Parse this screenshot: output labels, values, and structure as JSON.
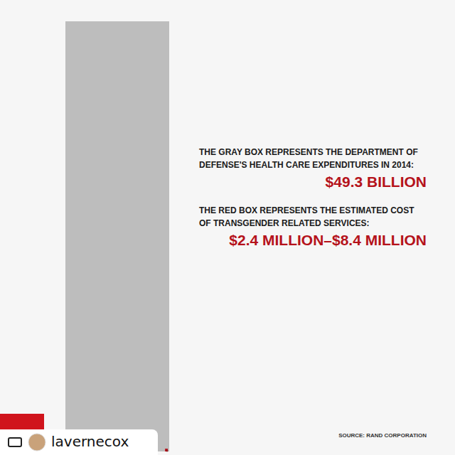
{
  "chart_data": {
    "type": "area_comparison",
    "categories": [
      "THE GRAY BOX REPRESENTS THE DEPARTMENT OF DEFENSE'S HEALTH CARE EXPENDITURES IN 2014:",
      "THE RED BOX REPRESENTS THE ESTIMATED COST OF TRANSGENDER RELATED SERVICES:"
    ],
    "values": [
      49300000000,
      8400000
    ],
    "low_values": [
      49300000000,
      2400000
    ],
    "value_labels": [
      "$49.3 BILLION",
      "$2.4 MILLION–$8.4 MILLION"
    ],
    "colors": [
      "#bdbdbd",
      "#b5121b"
    ],
    "data_labels": true,
    "tick_labels": false,
    "source": "SOURCE: RAND CORPORATION"
  },
  "repost_user": "lavernecox"
}
